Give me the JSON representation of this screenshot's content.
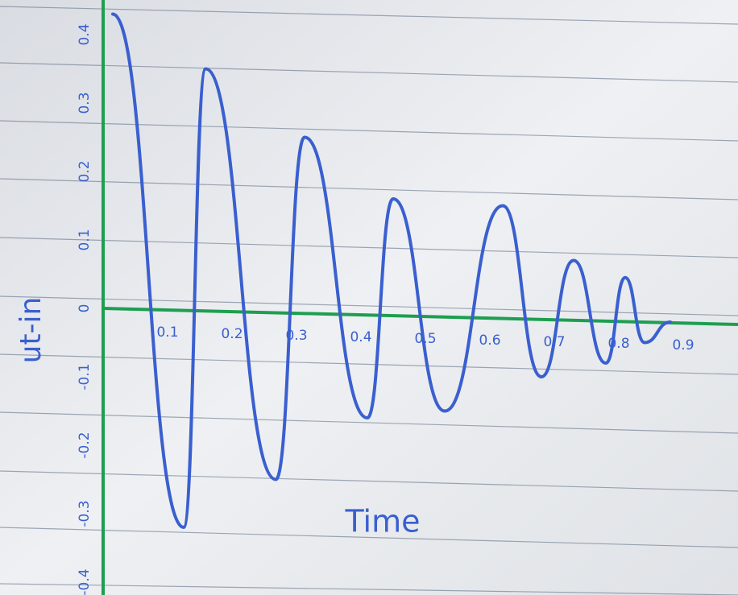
{
  "chart_data": {
    "type": "line",
    "xlabel": "Time",
    "ylabel": "ut-in",
    "x": [
      0.015,
      0.125,
      0.159,
      0.268,
      0.3125,
      0.41,
      0.45,
      0.53,
      0.62,
      0.68,
      0.73,
      0.78,
      0.81,
      0.84,
      0.88
    ],
    "series": [
      {
        "color": "#3a5fcf",
        "values": [
          0.43,
          -0.32,
          0.35,
          -0.25,
          0.25,
          -0.16,
          0.16,
          -0.15,
          0.15,
          -0.1,
          0.07,
          -0.08,
          0.045,
          -0.05,
          -0.02
        ]
      }
    ],
    "xlim": [
      0,
      0.985
    ],
    "ylim": [
      -0.42,
      0.42
    ],
    "xticks": [
      0.1,
      0.2,
      0.3,
      0.4,
      0.5,
      0.6,
      0.7,
      0.8,
      0.9
    ],
    "yticks": [
      -0.4,
      -0.3,
      -0.2,
      -0.1,
      0,
      0.1,
      0.2,
      0.3,
      0.4
    ],
    "axis_color": "#1e9e50"
  }
}
